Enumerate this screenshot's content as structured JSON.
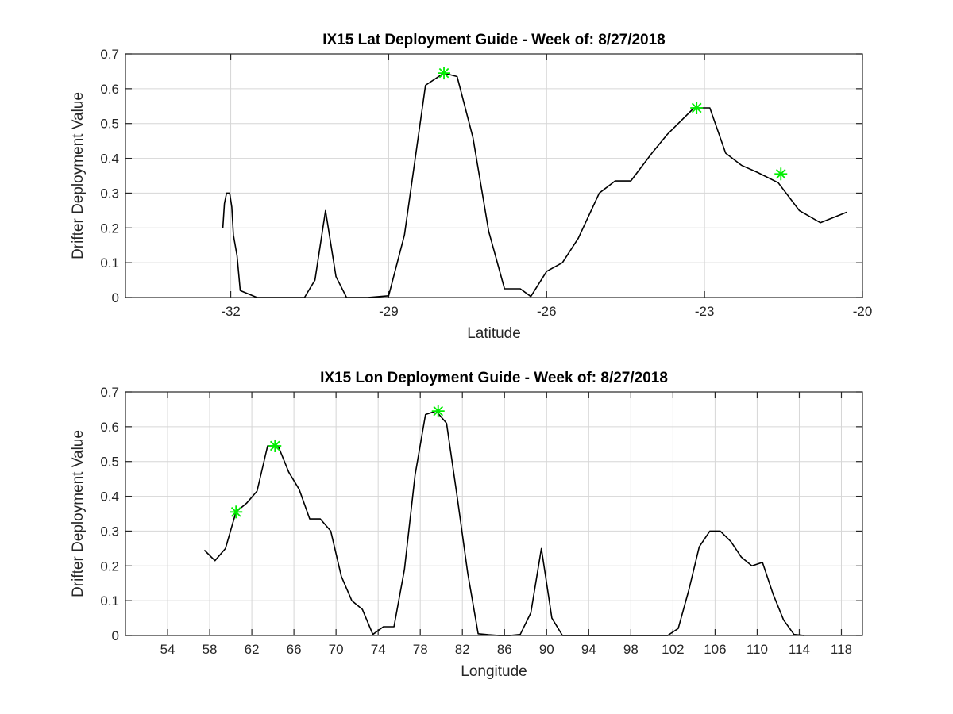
{
  "chart_data": [
    {
      "type": "line",
      "title": "IX15 Lat Deployment Guide - Week of: 8/27/2018",
      "xlabel": "Latitude",
      "ylabel": "Drifter Deployment Value",
      "xlim": [
        -34,
        -20
      ],
      "ylim": [
        0,
        0.7
      ],
      "xticks": [
        -32,
        -29,
        -26,
        -23,
        -20
      ],
      "yticks": [
        0,
        0.1,
        0.2,
        0.3,
        0.4,
        0.5,
        0.6,
        0.7
      ],
      "grid": true,
      "legend": "none",
      "line_color": "#000000",
      "marker_color": "#00ee00",
      "x": [
        -32.15,
        -32.12,
        -32.08,
        -32.02,
        -31.98,
        -31.95,
        -31.88,
        -31.82,
        -31.5,
        -30.6,
        -30.4,
        -30.2,
        -30.0,
        -29.8,
        -29.4,
        -29.0,
        -28.7,
        -28.3,
        -27.95,
        -27.7,
        -27.4,
        -27.1,
        -26.8,
        -26.5,
        -26.3,
        -26.0,
        -25.7,
        -25.4,
        -25.0,
        -24.7,
        -24.4,
        -24.0,
        -23.7,
        -23.2,
        -22.9,
        -22.6,
        -22.3,
        -22.0,
        -21.6,
        -21.2,
        -20.8,
        -20.3
      ],
      "y": [
        0.2,
        0.27,
        0.3,
        0.3,
        0.26,
        0.18,
        0.12,
        0.02,
        0,
        0,
        0.05,
        0.25,
        0.06,
        0,
        0,
        0.005,
        0.18,
        0.61,
        0.645,
        0.635,
        0.46,
        0.19,
        0.025,
        0.025,
        0.003,
        0.075,
        0.1,
        0.17,
        0.3,
        0.335,
        0.335,
        0.415,
        0.47,
        0.545,
        0.545,
        0.415,
        0.38,
        0.36,
        0.33,
        0.25,
        0.215,
        0.245
      ],
      "highlights": [
        {
          "x": -27.95,
          "y": 0.645
        },
        {
          "x": -23.15,
          "y": 0.545
        },
        {
          "x": -21.55,
          "y": 0.355
        }
      ]
    },
    {
      "type": "line",
      "title": "IX15 Lon Deployment Guide - Week of: 8/27/2018",
      "xlabel": "Longitude",
      "ylabel": "Drifter Deployment Value",
      "xlim": [
        50,
        120
      ],
      "ylim": [
        0,
        0.7
      ],
      "xticks": [
        54,
        58,
        62,
        66,
        70,
        74,
        78,
        82,
        86,
        90,
        94,
        98,
        102,
        106,
        110,
        114,
        118
      ],
      "yticks": [
        0,
        0.1,
        0.2,
        0.3,
        0.4,
        0.5,
        0.6,
        0.7
      ],
      "grid": true,
      "legend": "none",
      "line_color": "#000000",
      "marker_color": "#00ee00",
      "x": [
        57.5,
        58.5,
        59.5,
        60.5,
        61.5,
        62.5,
        63.5,
        64.5,
        65.5,
        66.5,
        67.5,
        68.5,
        69.5,
        70.5,
        71.5,
        72.5,
        73.5,
        74.5,
        75.5,
        76.5,
        77.5,
        78.5,
        79.5,
        80.5,
        81.5,
        82.5,
        83.5,
        84.5,
        85.5,
        86.5,
        87.5,
        88.5,
        89.5,
        90.5,
        91.5,
        92.5,
        101.5,
        102.5,
        103.5,
        104.5,
        105.5,
        106.5,
        107.5,
        108.5,
        109.5,
        110.5,
        111.5,
        112.5,
        113.5,
        114.5
      ],
      "y": [
        0.245,
        0.215,
        0.25,
        0.355,
        0.38,
        0.415,
        0.545,
        0.545,
        0.47,
        0.42,
        0.335,
        0.335,
        0.3,
        0.17,
        0.1,
        0.075,
        0.003,
        0.025,
        0.025,
        0.19,
        0.46,
        0.635,
        0.645,
        0.61,
        0.4,
        0.18,
        0.005,
        0.002,
        0.0,
        0.0,
        0.003,
        0.065,
        0.25,
        0.05,
        0.0,
        0.0,
        0.0,
        0.02,
        0.13,
        0.255,
        0.3,
        0.3,
        0.27,
        0.225,
        0.2,
        0.21,
        0.12,
        0.045,
        0.003,
        0.0
      ],
      "highlights": [
        {
          "x": 60.5,
          "y": 0.355
        },
        {
          "x": 64.2,
          "y": 0.545
        },
        {
          "x": 79.7,
          "y": 0.645
        }
      ]
    }
  ]
}
